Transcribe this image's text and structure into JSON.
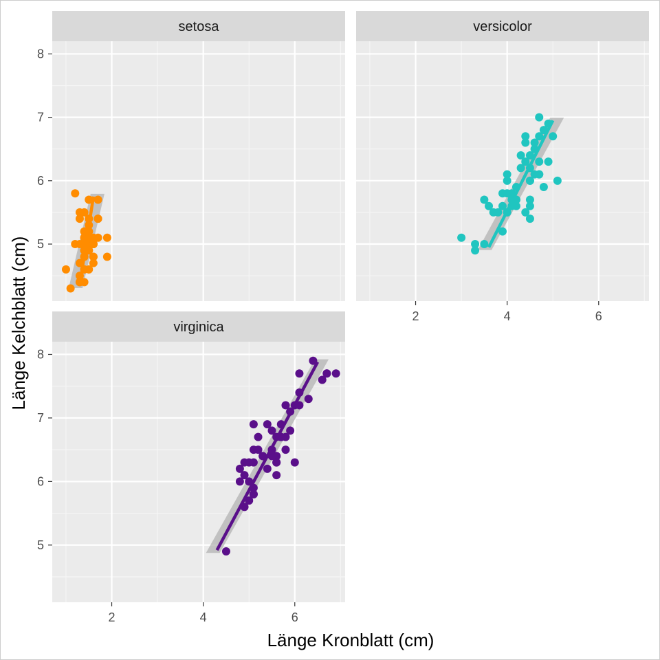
{
  "chart_data": {
    "type": "scatter",
    "facet": "species",
    "xlabel": "Länge Kronblatt (cm)",
    "ylabel": "Länge Kelchblatt (cm)",
    "xlim": [
      0.7,
      7.1
    ],
    "ylim": [
      4.1,
      8.2
    ],
    "x_ticks": [
      2,
      4,
      6
    ],
    "y_ticks": [
      5,
      6,
      7,
      8
    ],
    "grid": true,
    "legend": "none",
    "panels": [
      {
        "name": "setosa",
        "color": "#FF8C00",
        "points": [
          [
            1.4,
            5.1
          ],
          [
            1.4,
            4.9
          ],
          [
            1.3,
            4.7
          ],
          [
            1.5,
            4.6
          ],
          [
            1.4,
            5.0
          ],
          [
            1.7,
            5.4
          ],
          [
            1.4,
            4.6
          ],
          [
            1.5,
            5.0
          ],
          [
            1.4,
            4.4
          ],
          [
            1.5,
            4.9
          ],
          [
            1.5,
            5.4
          ],
          [
            1.6,
            4.8
          ],
          [
            1.4,
            4.8
          ],
          [
            1.1,
            4.3
          ],
          [
            1.2,
            5.8
          ],
          [
            1.5,
            5.7
          ],
          [
            1.3,
            5.4
          ],
          [
            1.4,
            5.1
          ],
          [
            1.7,
            5.7
          ],
          [
            1.5,
            5.1
          ],
          [
            1.7,
            5.4
          ],
          [
            1.5,
            5.1
          ],
          [
            1.0,
            4.6
          ],
          [
            1.7,
            5.1
          ],
          [
            1.9,
            4.8
          ],
          [
            1.6,
            5.0
          ],
          [
            1.6,
            5.0
          ],
          [
            1.5,
            5.2
          ],
          [
            1.4,
            5.2
          ],
          [
            1.6,
            4.7
          ],
          [
            1.6,
            4.8
          ],
          [
            1.5,
            5.4
          ],
          [
            1.5,
            5.2
          ],
          [
            1.4,
            5.5
          ],
          [
            1.5,
            4.9
          ],
          [
            1.2,
            5.0
          ],
          [
            1.3,
            5.5
          ],
          [
            1.4,
            4.9
          ],
          [
            1.3,
            4.4
          ],
          [
            1.5,
            5.1
          ],
          [
            1.3,
            5.0
          ],
          [
            1.3,
            4.5
          ],
          [
            1.3,
            4.4
          ],
          [
            1.6,
            5.0
          ],
          [
            1.9,
            5.1
          ],
          [
            1.4,
            4.8
          ],
          [
            1.6,
            5.1
          ],
          [
            1.4,
            4.6
          ],
          [
            1.5,
            5.3
          ],
          [
            1.4,
            5.0
          ]
        ],
        "fit_line": {
          "x": [
            1.3,
            1.6
          ],
          "y": [
            4.35,
            5.75
          ]
        }
      },
      {
        "name": "versicolor",
        "color": "#20C5C0",
        "points": [
          [
            4.7,
            7.0
          ],
          [
            4.5,
            6.4
          ],
          [
            4.9,
            6.9
          ],
          [
            4.0,
            5.5
          ],
          [
            4.6,
            6.5
          ],
          [
            4.5,
            5.7
          ],
          [
            4.7,
            6.3
          ],
          [
            3.3,
            4.9
          ],
          [
            4.6,
            6.6
          ],
          [
            3.9,
            5.2
          ],
          [
            3.5,
            5.0
          ],
          [
            4.2,
            5.9
          ],
          [
            4.0,
            6.0
          ],
          [
            4.7,
            6.1
          ],
          [
            3.6,
            5.6
          ],
          [
            4.4,
            6.7
          ],
          [
            4.5,
            5.6
          ],
          [
            4.1,
            5.8
          ],
          [
            4.5,
            6.2
          ],
          [
            3.9,
            5.6
          ],
          [
            4.8,
            5.9
          ],
          [
            4.0,
            6.1
          ],
          [
            4.9,
            6.3
          ],
          [
            4.7,
            6.1
          ],
          [
            4.3,
            6.4
          ],
          [
            4.4,
            6.6
          ],
          [
            4.8,
            6.8
          ],
          [
            5.0,
            6.7
          ],
          [
            4.5,
            6.0
          ],
          [
            3.5,
            5.7
          ],
          [
            3.8,
            5.5
          ],
          [
            3.7,
            5.5
          ],
          [
            3.9,
            5.8
          ],
          [
            5.1,
            6.0
          ],
          [
            4.5,
            5.4
          ],
          [
            4.5,
            6.0
          ],
          [
            4.7,
            6.7
          ],
          [
            4.4,
            6.3
          ],
          [
            4.1,
            5.6
          ],
          [
            4.0,
            5.5
          ],
          [
            4.4,
            5.5
          ],
          [
            4.6,
            6.1
          ],
          [
            4.0,
            5.8
          ],
          [
            3.3,
            5.0
          ],
          [
            4.2,
            5.6
          ],
          [
            4.2,
            5.7
          ],
          [
            4.2,
            5.7
          ],
          [
            4.3,
            6.2
          ],
          [
            3.0,
            5.1
          ],
          [
            4.1,
            5.7
          ]
        ],
        "fit_line": {
          "x": [
            3.6,
            5.0
          ],
          "y": [
            4.95,
            6.95
          ]
        }
      },
      {
        "name": "virginica",
        "color": "#5A0F8A",
        "points": [
          [
            6.0,
            6.3
          ],
          [
            5.1,
            5.8
          ],
          [
            5.9,
            7.1
          ],
          [
            5.6,
            6.3
          ],
          [
            5.8,
            6.5
          ],
          [
            6.6,
            7.6
          ],
          [
            4.5,
            4.9
          ],
          [
            6.3,
            7.3
          ],
          [
            5.8,
            6.7
          ],
          [
            6.1,
            7.2
          ],
          [
            5.1,
            6.5
          ],
          [
            5.3,
            6.4
          ],
          [
            5.5,
            6.8
          ],
          [
            5.0,
            5.7
          ],
          [
            5.1,
            5.8
          ],
          [
            5.3,
            6.4
          ],
          [
            5.5,
            6.5
          ],
          [
            6.7,
            7.7
          ],
          [
            6.9,
            7.7
          ],
          [
            5.0,
            6.0
          ],
          [
            5.7,
            6.9
          ],
          [
            4.9,
            5.6
          ],
          [
            6.7,
            7.7
          ],
          [
            4.9,
            6.3
          ],
          [
            5.7,
            6.7
          ],
          [
            6.0,
            7.2
          ],
          [
            4.8,
            6.2
          ],
          [
            4.9,
            6.1
          ],
          [
            5.6,
            6.4
          ],
          [
            5.8,
            7.2
          ],
          [
            6.1,
            7.4
          ],
          [
            6.4,
            7.9
          ],
          [
            5.6,
            6.4
          ],
          [
            5.1,
            6.3
          ],
          [
            5.6,
            6.1
          ],
          [
            6.1,
            7.7
          ],
          [
            5.6,
            6.3
          ],
          [
            5.5,
            6.4
          ],
          [
            4.8,
            6.0
          ],
          [
            5.4,
            6.9
          ],
          [
            5.6,
            6.7
          ],
          [
            5.1,
            6.9
          ],
          [
            5.1,
            5.8
          ],
          [
            5.9,
            6.8
          ],
          [
            5.7,
            6.7
          ],
          [
            5.2,
            6.7
          ],
          [
            5.0,
            6.3
          ],
          [
            5.2,
            6.5
          ],
          [
            5.4,
            6.2
          ],
          [
            5.1,
            5.9
          ]
        ],
        "fit_line": {
          "x": [
            4.3,
            6.5
          ],
          "y": [
            4.92,
            7.88
          ]
        }
      }
    ]
  }
}
